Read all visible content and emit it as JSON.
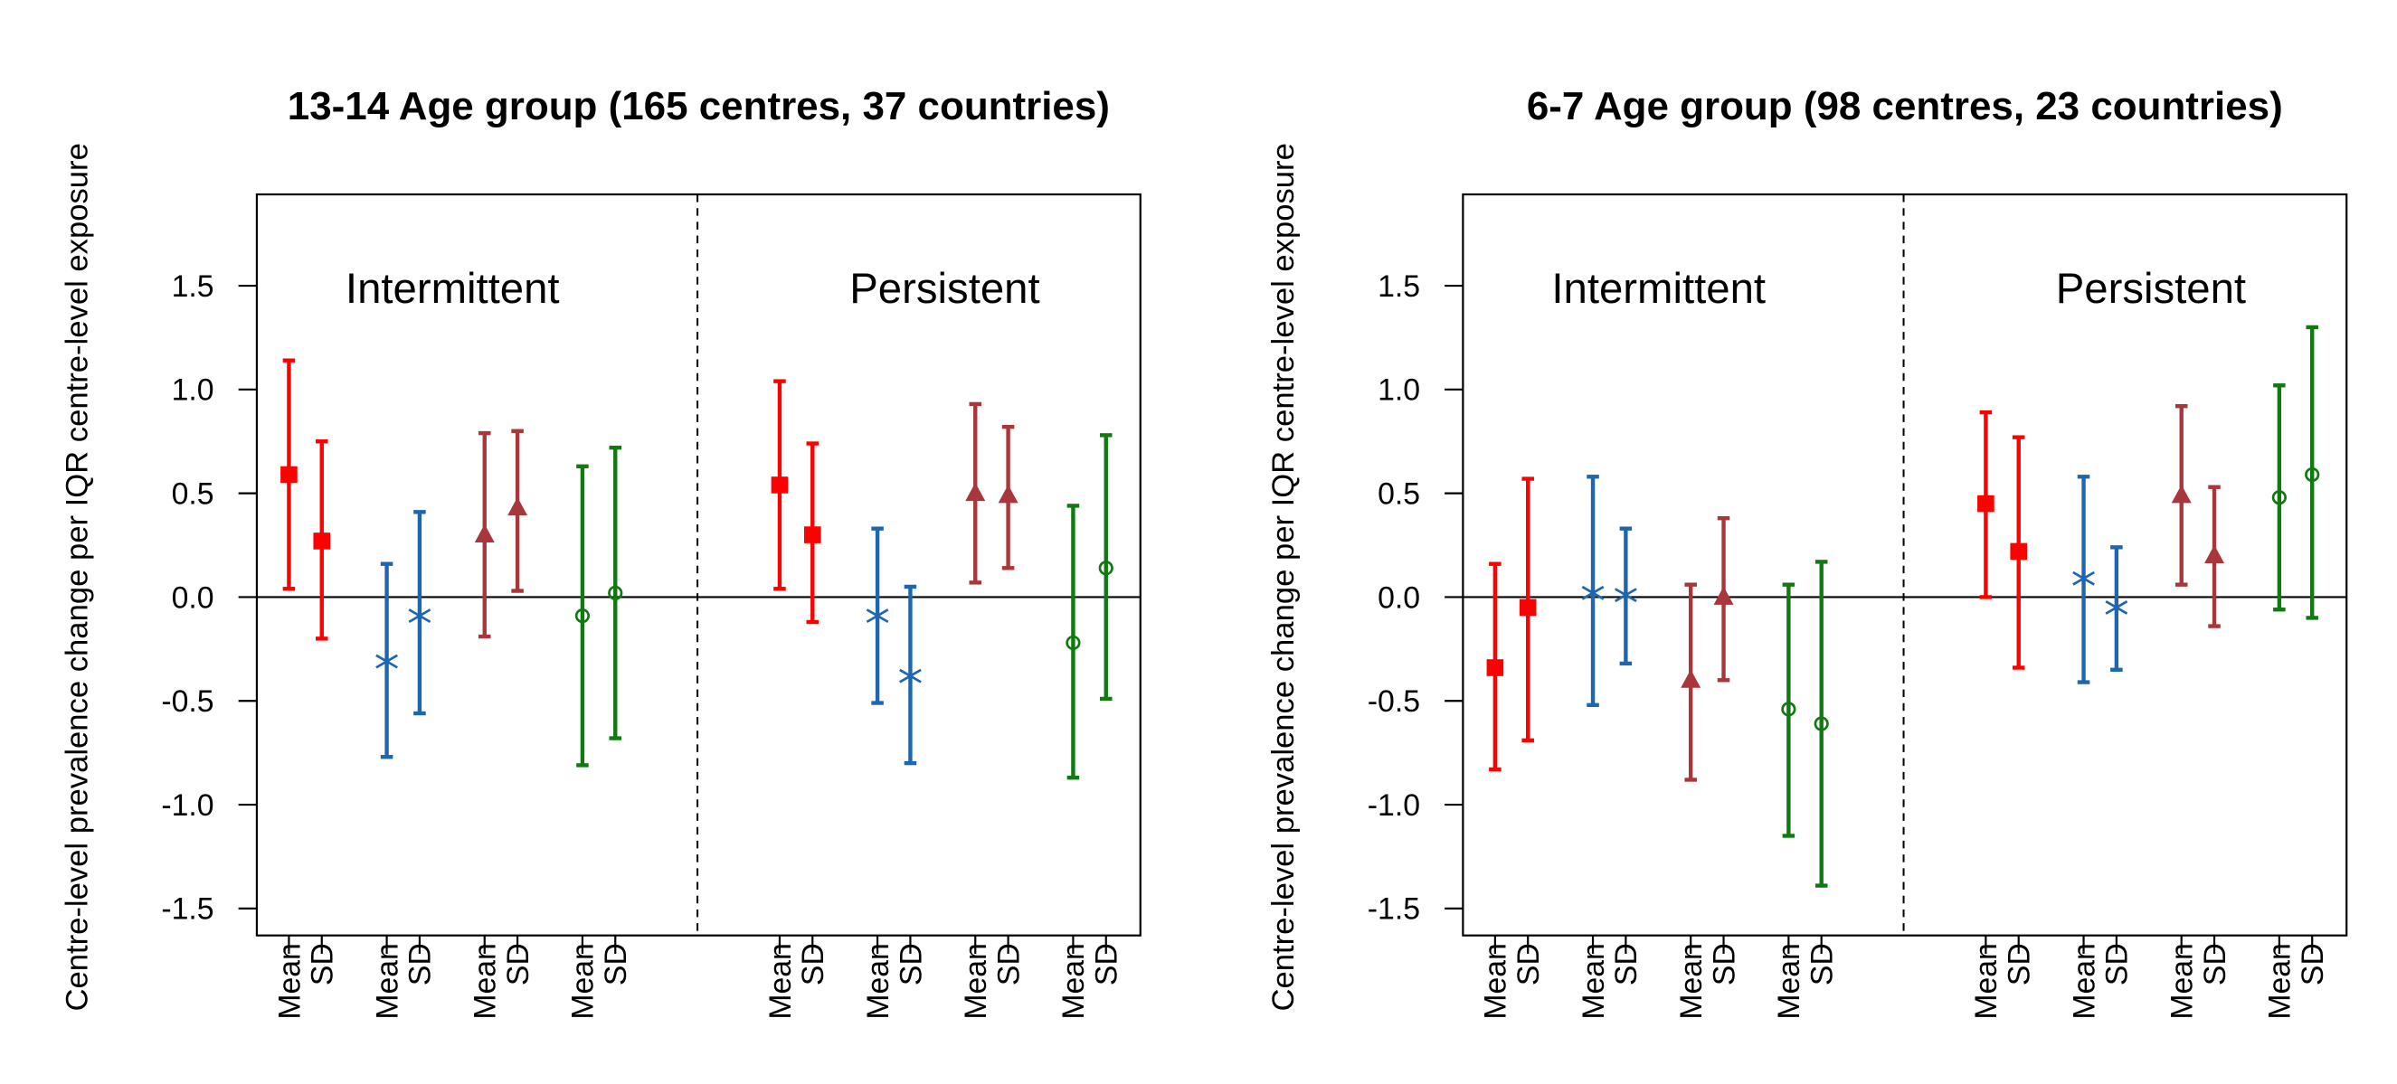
{
  "chart_data": [
    {
      "type": "errorbar",
      "title": "13-14 Age group (165 centres, 37 countries)",
      "ylabel": "Centre-level prevalence change per IQR centre-level exposure",
      "annotations": [
        "Intermittent",
        "Persistent"
      ],
      "categories": [
        "Mean",
        "SD",
        "Mean",
        "SD",
        "Mean",
        "SD",
        "Mean",
        "SD",
        "Mean",
        "SD",
        "Mean",
        "SD",
        "Mean",
        "SD",
        "Mean",
        "SD"
      ],
      "ylim": [
        -1.63,
        1.94
      ],
      "yticks": [
        1.5,
        {
          "value": 1.0,
          "label": "1.0"
        },
        0.5,
        {
          "value": 0.0,
          "label": "0.0"
        },
        -0.5,
        {
          "value": -1.0,
          "label": "-1.0"
        },
        -1.5
      ],
      "hline": 0,
      "series": [
        {
          "color": "#ff0000",
          "marker": "square",
          "values": [
            0.59,
            0.27,
            null,
            null,
            null,
            null,
            null,
            null,
            0.54,
            0.3,
            null,
            null,
            null,
            null,
            null,
            null
          ],
          "lower": [
            0.04,
            -0.2,
            null,
            null,
            null,
            null,
            null,
            null,
            0.04,
            -0.12,
            null,
            null,
            null,
            null,
            null,
            null
          ],
          "upper": [
            1.14,
            0.75,
            null,
            null,
            null,
            null,
            null,
            null,
            1.04,
            0.74,
            null,
            null,
            null,
            null,
            null,
            null
          ]
        },
        {
          "color": "#1f66b0",
          "marker": "asterisk",
          "values": [
            null,
            null,
            -0.31,
            -0.09,
            null,
            null,
            null,
            null,
            null,
            null,
            -0.09,
            -0.38,
            null,
            null,
            null,
            null
          ],
          "lower": [
            null,
            null,
            -0.77,
            -0.56,
            null,
            null,
            null,
            null,
            null,
            null,
            -0.51,
            -0.8,
            null,
            null,
            null,
            null
          ],
          "upper": [
            null,
            null,
            0.16,
            0.41,
            null,
            null,
            null,
            null,
            null,
            null,
            0.33,
            0.05,
            null,
            null,
            null,
            null
          ]
        },
        {
          "color": "#a8363a",
          "marker": "triangle",
          "values": [
            null,
            null,
            null,
            null,
            0.3,
            0.43,
            null,
            null,
            null,
            null,
            null,
            null,
            0.5,
            0.49,
            null,
            null
          ],
          "lower": [
            null,
            null,
            null,
            null,
            -0.19,
            0.03,
            null,
            null,
            null,
            null,
            null,
            null,
            0.07,
            0.14,
            null,
            null
          ],
          "upper": [
            null,
            null,
            null,
            null,
            0.79,
            0.8,
            null,
            null,
            null,
            null,
            null,
            null,
            0.93,
            0.82,
            null,
            null
          ]
        },
        {
          "color": "#107a10",
          "marker": "circle",
          "values": [
            null,
            null,
            null,
            null,
            null,
            null,
            -0.09,
            0.02,
            null,
            null,
            null,
            null,
            null,
            null,
            -0.22,
            0.14
          ],
          "lower": [
            null,
            null,
            null,
            null,
            null,
            null,
            -0.81,
            -0.68,
            null,
            null,
            null,
            null,
            null,
            null,
            -0.87,
            -0.49
          ],
          "upper": [
            null,
            null,
            null,
            null,
            null,
            null,
            0.63,
            0.72,
            null,
            null,
            null,
            null,
            null,
            null,
            0.44,
            0.78
          ]
        }
      ]
    },
    {
      "type": "errorbar",
      "title": "6-7 Age group (98 centres, 23 countries)",
      "ylabel": "Centre-level prevalence change per IQR centre-level exposure",
      "annotations": [
        "Intermittent",
        "Persistent"
      ],
      "categories": [
        "Mean",
        "SD",
        "Mean",
        "SD",
        "Mean",
        "SD",
        "Mean",
        "SD",
        "Mean",
        "SD",
        "Mean",
        "SD",
        "Mean",
        "SD",
        "Mean",
        "SD"
      ],
      "ylim": [
        -1.63,
        1.94
      ],
      "yticks": [
        1.5,
        {
          "value": 1.0,
          "label": "1.0"
        },
        0.5,
        {
          "value": 0.0,
          "label": "0.0"
        },
        -0.5,
        {
          "value": -1.0,
          "label": "-1.0"
        },
        -1.5
      ],
      "hline": 0,
      "series": [
        {
          "color": "#ff0000",
          "marker": "square",
          "values": [
            -0.34,
            -0.05,
            null,
            null,
            null,
            null,
            null,
            null,
            0.45,
            0.22,
            null,
            null,
            null,
            null,
            null,
            null
          ],
          "lower": [
            -0.83,
            -0.69,
            null,
            null,
            null,
            null,
            null,
            null,
            0.0,
            -0.34,
            null,
            null,
            null,
            null,
            null,
            null
          ],
          "upper": [
            0.16,
            0.57,
            null,
            null,
            null,
            null,
            null,
            null,
            0.89,
            0.77,
            null,
            null,
            null,
            null,
            null,
            null
          ]
        },
        {
          "color": "#1f66b0",
          "marker": "asterisk",
          "values": [
            null,
            null,
            0.02,
            0.01,
            null,
            null,
            null,
            null,
            null,
            null,
            0.09,
            -0.05,
            null,
            null,
            null,
            null
          ],
          "lower": [
            null,
            null,
            -0.52,
            -0.32,
            null,
            null,
            null,
            null,
            null,
            null,
            -0.41,
            -0.35,
            null,
            null,
            null,
            null
          ],
          "upper": [
            null,
            null,
            0.58,
            0.33,
            null,
            null,
            null,
            null,
            null,
            null,
            0.58,
            0.24,
            null,
            null,
            null,
            null
          ]
        },
        {
          "color": "#a8363a",
          "marker": "triangle",
          "values": [
            null,
            null,
            null,
            null,
            -0.4,
            0.0,
            null,
            null,
            null,
            null,
            null,
            null,
            0.49,
            0.2,
            null,
            null
          ],
          "lower": [
            null,
            null,
            null,
            null,
            -0.88,
            -0.4,
            null,
            null,
            null,
            null,
            null,
            null,
            0.06,
            -0.14,
            null,
            null
          ],
          "upper": [
            null,
            null,
            null,
            null,
            0.06,
            0.38,
            null,
            null,
            null,
            null,
            null,
            null,
            0.92,
            0.53,
            null,
            null
          ]
        },
        {
          "color": "#107a10",
          "marker": "circle",
          "values": [
            null,
            null,
            null,
            null,
            null,
            null,
            -0.54,
            -0.61,
            null,
            null,
            null,
            null,
            null,
            null,
            0.48,
            0.59
          ],
          "lower": [
            null,
            null,
            null,
            null,
            null,
            null,
            -1.15,
            -1.39,
            null,
            null,
            null,
            null,
            null,
            null,
            -0.06,
            -0.1
          ],
          "upper": [
            null,
            null,
            null,
            null,
            null,
            null,
            0.06,
            0.17,
            null,
            null,
            null,
            null,
            null,
            null,
            1.02,
            1.3
          ]
        }
      ]
    }
  ]
}
